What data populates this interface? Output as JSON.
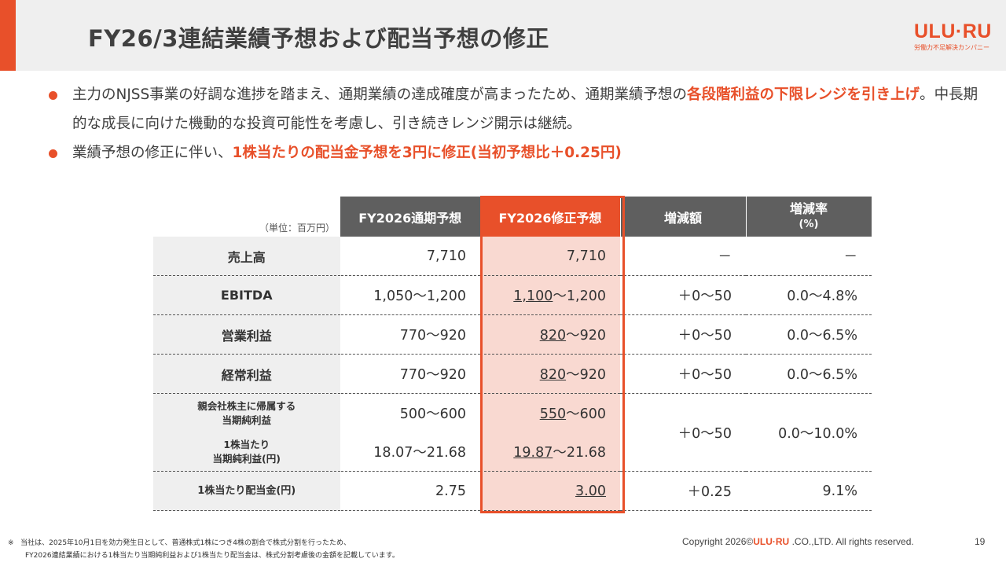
{
  "header": {
    "title": "FY26/3連結業績予想および配当予想の修正",
    "logo": "ULU·RU",
    "logo_tagline": "労働力不足解決カンパニー",
    "accent_color": "#e8502a"
  },
  "bullets": [
    {
      "pre": "主力のNJSS事業の好調な進捗を踏まえ、通期業績の達成確度が高まったため、通期業績予想の",
      "highlight": "各段階利益の下限レンジを引き上げ",
      "post": "。中長期的な成長に向けた機動的な投資可能性を考慮し、引き続きレンジ開示は継続。"
    },
    {
      "pre": "業績予想の修正に伴い、",
      "highlight": "1株当たりの配当金予想を3円に修正(当初予想比＋0.25円)",
      "post": ""
    }
  ],
  "table": {
    "unit": "（単位：百万円）",
    "headers": {
      "col1": "FY2026通期予想",
      "col2": "FY2026修正予想",
      "col3": "増減額",
      "col4_line1": "増減率",
      "col4_line2": "(%)"
    },
    "rows": {
      "sales": {
        "label": "売上高",
        "plan": "7,710",
        "rev_u": "",
        "rev_rest": "7,710",
        "diff": "－",
        "rate": "－"
      },
      "ebitda": {
        "label": "EBITDA",
        "plan": "1,050～1,200",
        "rev_u": "1,100",
        "rev_rest": "～1,200",
        "diff": "＋0～50",
        "rate": "0.0～4.8%"
      },
      "op": {
        "label": "営業利益",
        "plan": "770～920",
        "rev_u": "820",
        "rev_rest": "～920",
        "diff": "＋0～50",
        "rate": "0.0～6.5%"
      },
      "ord": {
        "label": "経常利益",
        "plan": "770～920",
        "rev_u": "820",
        "rev_rest": "～920",
        "diff": "＋0～50",
        "rate": "0.0～6.5%"
      },
      "net": {
        "label_line1": "親会社株主に帰属する",
        "label_line2": "当期純利益",
        "plan": "500～600",
        "rev_u": "550",
        "rev_rest": "～600",
        "diff": "＋0～50",
        "rate": "0.0～10.0%"
      },
      "eps": {
        "label_line1": "1株当たり",
        "label_line2": "当期純利益(円)",
        "plan": "18.07～21.68",
        "rev_u": "19.87",
        "rev_rest": "～21.68"
      },
      "dps": {
        "label": "1株当たり配当金(円)",
        "plan": "2.75",
        "rev_u": "3.00",
        "rev_rest": "",
        "diff": "＋0.25",
        "rate": "9.1%"
      }
    }
  },
  "footer": {
    "note_mark": "※",
    "note_line1": "当社は、2025年10月1日を効力発生日として、普通株式1株につき4株の割合で株式分割を行ったため、",
    "note_line2": "FY2026連結業績における1株当たり当期純利益および1株当たり配当金は、株式分割考慮後の金額を記載しています。",
    "copyright_pre": "Copyright 2026©",
    "copyright_logo": "ULU·RU",
    "copyright_post": " .CO.,LTD. All rights reserved.",
    "page_number": "19"
  }
}
